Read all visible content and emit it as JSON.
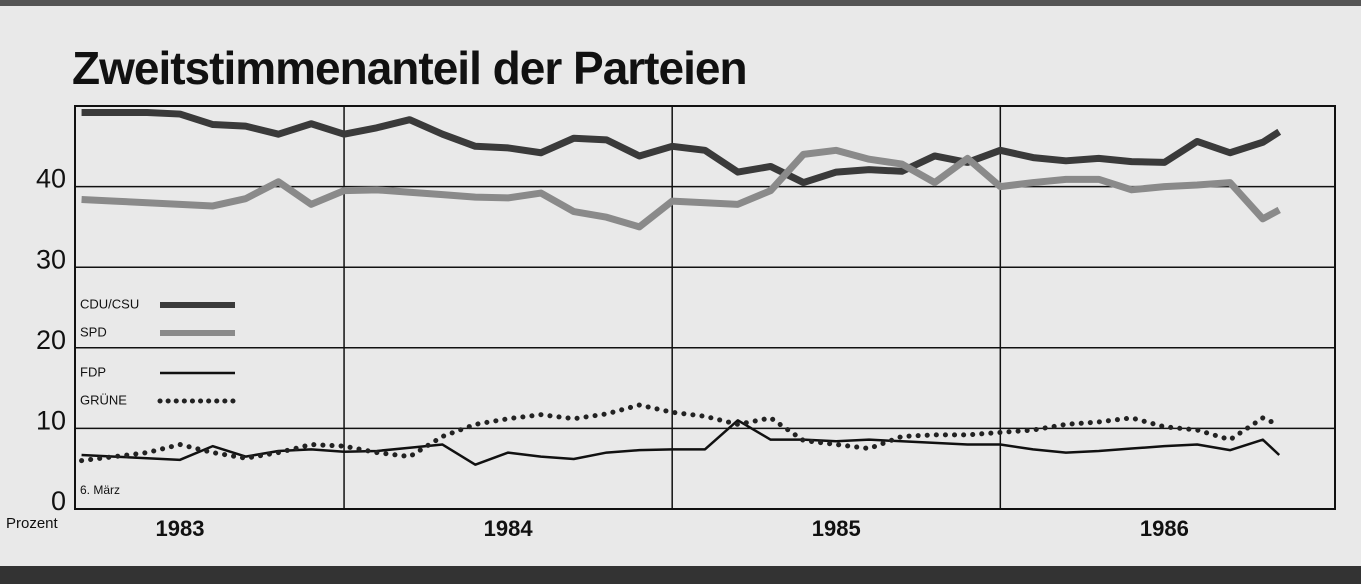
{
  "chart_data": {
    "type": "line",
    "title": "Zweitstimmenanteil der Parteien",
    "ylabel": "Prozent",
    "annotation": "6. März",
    "x": [
      1983.2,
      1983.3,
      1983.4,
      1983.5,
      1983.6,
      1983.7,
      1983.8,
      1983.9,
      1984.0,
      1984.1,
      1984.2,
      1984.3,
      1984.4,
      1984.5,
      1984.6,
      1984.7,
      1984.8,
      1984.9,
      1985.0,
      1985.1,
      1985.2,
      1985.3,
      1985.4,
      1985.5,
      1985.6,
      1985.7,
      1985.8,
      1985.9,
      1986.0,
      1986.1,
      1986.2,
      1986.3,
      1986.4,
      1986.5,
      1986.6,
      1986.7,
      1986.8,
      1986.85
    ],
    "series": [
      {
        "name": "CDU/CSU",
        "color": "#3a3a3a",
        "line_width": 7,
        "line_style": "solid",
        "values": [
          49.2,
          49.2,
          49.2,
          49.0,
          47.7,
          47.5,
          46.5,
          47.8,
          46.5,
          47.3,
          48.3,
          46.5,
          45.0,
          44.8,
          44.2,
          46.0,
          45.8,
          43.8,
          45.0,
          44.5,
          41.8,
          42.5,
          40.5,
          41.8,
          42.1,
          41.9,
          43.8,
          43.0,
          44.5,
          43.6,
          43.2,
          43.5,
          43.1,
          43.0,
          45.6,
          44.2,
          45.5,
          46.8
        ]
      },
      {
        "name": "SPD",
        "color": "#8a8a8a",
        "line_width": 7,
        "line_style": "solid",
        "values": [
          38.4,
          38.2,
          38.0,
          37.8,
          37.6,
          38.5,
          40.6,
          37.8,
          39.5,
          39.6,
          39.3,
          39.0,
          38.7,
          38.6,
          39.2,
          36.9,
          36.2,
          35.0,
          38.2,
          38.0,
          37.8,
          39.5,
          44.0,
          44.5,
          43.4,
          42.8,
          40.5,
          43.5,
          40.0,
          40.5,
          40.9,
          40.9,
          39.6,
          40.0,
          40.2,
          40.5,
          36.0,
          37.1
        ]
      },
      {
        "name": "FDP",
        "color": "#111111",
        "line_width": 2.5,
        "line_style": "solid",
        "values": [
          6.7,
          6.5,
          6.3,
          6.1,
          7.8,
          6.5,
          7.2,
          7.4,
          7.1,
          7.2,
          7.6,
          8.0,
          5.5,
          7.0,
          6.5,
          6.2,
          7.0,
          7.3,
          7.4,
          7.4,
          11.0,
          8.6,
          8.6,
          8.4,
          8.6,
          8.4,
          8.2,
          8.0,
          8.0,
          7.4,
          7.0,
          7.2,
          7.5,
          7.8,
          8.0,
          7.3,
          8.6,
          6.7
        ]
      },
      {
        "name": "GRÜNE",
        "color": "#222222",
        "line_width": 5,
        "line_style": "dotted",
        "values": [
          6.0,
          6.5,
          7.0,
          8.0,
          7.0,
          6.3,
          7.0,
          8.0,
          7.8,
          7.0,
          6.5,
          9.0,
          10.5,
          11.2,
          11.7,
          11.2,
          11.8,
          12.9,
          12.0,
          11.5,
          10.5,
          11.3,
          8.5,
          8.0,
          7.5,
          9.0,
          9.2,
          9.2,
          9.5,
          9.8,
          10.5,
          10.8,
          11.3,
          10.2,
          9.8,
          8.6,
          11.3,
          10.4
        ]
      }
    ],
    "xlim": [
      1983.18,
      1987.02
    ],
    "xticks": [
      {
        "value": 1983.5,
        "label": "1983"
      },
      {
        "value": 1984.5,
        "label": "1984"
      },
      {
        "value": 1985.5,
        "label": "1985"
      },
      {
        "value": 1986.5,
        "label": "1986"
      }
    ],
    "ylim": [
      0,
      50
    ],
    "yticks": [
      0,
      10,
      20,
      30,
      40
    ],
    "grid": true
  }
}
